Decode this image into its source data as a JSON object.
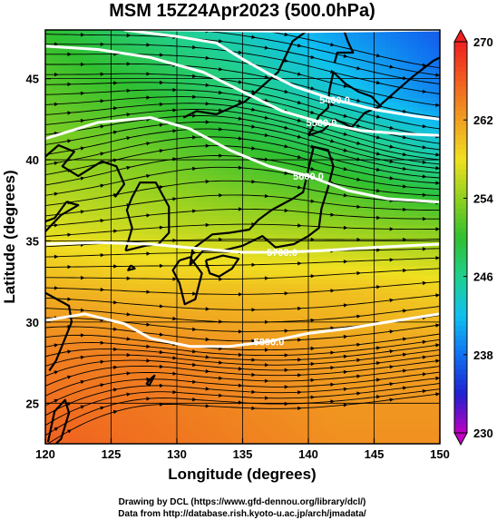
{
  "chart_data": {
    "type": "heatmap",
    "title": "MSM 15Z24Apr2023 (500.0hPa)",
    "xlabel": "Longitude (degrees)",
    "ylabel": "Latitude  (degrees)",
    "xlim": [
      120,
      150
    ],
    "ylim": [
      22.5,
      48
    ],
    "x_ticks": [
      "120",
      "125",
      "130",
      "135",
      "140",
      "145",
      "150"
    ],
    "y_ticks": [
      "25",
      "30",
      "35",
      "40",
      "45"
    ],
    "colorbar": {
      "range": [
        230,
        270
      ],
      "ticks": [
        "230",
        "238",
        "246",
        "254",
        "262",
        "270"
      ],
      "colors": [
        "#c000c0",
        "#2020d0",
        "#1070f0",
        "#10c0f0",
        "#20d090",
        "#30c030",
        "#90d020",
        "#f0e020",
        "#f0a020",
        "#f06020",
        "#f02020"
      ]
    },
    "temperature_grid": {
      "lon": [
        120,
        127.5,
        135,
        142.5,
        150
      ],
      "lat": [
        48,
        44,
        40,
        36,
        32,
        28,
        22.5
      ],
      "values": [
        [
          250,
          247,
          244,
          240,
          237
        ],
        [
          252,
          250,
          247,
          243,
          239
        ],
        [
          254,
          253,
          251,
          249,
          245
        ],
        [
          257,
          256,
          255,
          254,
          253
        ],
        [
          261,
          260,
          260,
          260,
          259
        ],
        [
          264,
          264,
          263,
          262,
          262
        ],
        [
          266,
          265,
          264,
          263,
          263
        ]
      ]
    },
    "contours": [
      {
        "label": "5400.0",
        "points": [
          [
            126,
            48
          ],
          [
            130,
            47.6
          ],
          [
            133,
            47.2
          ],
          [
            135,
            46.2
          ],
          [
            137,
            45.3
          ],
          [
            139,
            44.5
          ],
          [
            142,
            43.7
          ],
          [
            145,
            43.1
          ],
          [
            148,
            42.7
          ],
          [
            150,
            42.5
          ]
        ]
      },
      {
        "label": "5500.0",
        "points": [
          [
            120,
            47
          ],
          [
            124,
            46.8
          ],
          [
            128,
            46.3
          ],
          [
            132,
            45.4
          ],
          [
            135,
            44.2
          ],
          [
            138,
            43.0
          ],
          [
            141,
            42.3
          ],
          [
            144,
            41.8
          ],
          [
            147,
            41.6
          ],
          [
            150,
            41.5
          ]
        ]
      },
      {
        "label": "5600.0",
        "points": [
          [
            120,
            41.3
          ],
          [
            124,
            42.3
          ],
          [
            128,
            42.6
          ],
          [
            131,
            41.9
          ],
          [
            134,
            40.6
          ],
          [
            137,
            39.6
          ],
          [
            140,
            39.0
          ],
          [
            143,
            38.1
          ],
          [
            146,
            37.6
          ],
          [
            150,
            37.4
          ]
        ]
      },
      {
        "label": "5700.0",
        "points": [
          [
            120,
            34.8
          ],
          [
            124,
            34.9
          ],
          [
            128,
            34.8
          ],
          [
            132,
            34.5
          ],
          [
            135,
            34.3
          ],
          [
            138,
            34.3
          ],
          [
            141,
            34.4
          ],
          [
            145,
            34.6
          ],
          [
            150,
            34.8
          ]
        ]
      },
      {
        "label": "5800.0",
        "points": [
          [
            120,
            30.1
          ],
          [
            123,
            30.5
          ],
          [
            126,
            29.9
          ],
          [
            128,
            29.0
          ],
          [
            131,
            28.5
          ],
          [
            134,
            28.5
          ],
          [
            137,
            28.8
          ],
          [
            140,
            29.3
          ],
          [
            143,
            29.6
          ],
          [
            146,
            30.0
          ],
          [
            150,
            30.5
          ]
        ]
      },
      {
        "label": "",
        "points": [
          [
            120,
            48.1
          ],
          [
            130,
            48.0
          ],
          [
            140,
            47.9
          ],
          [
            150,
            48.0
          ]
        ]
      }
    ],
    "coastlines": [
      [
        [
          131,
          33.5
        ],
        [
          132,
          34.4
        ],
        [
          133.5,
          34.4
        ],
        [
          135,
          34.7
        ],
        [
          136.5,
          35.3
        ],
        [
          137.5,
          34.6
        ],
        [
          138.9,
          34.8
        ],
        [
          140,
          35.3
        ],
        [
          140.8,
          35.8
        ],
        [
          141,
          37.0
        ],
        [
          141.5,
          38.3
        ],
        [
          141.9,
          39.6
        ],
        [
          141.5,
          40.6
        ],
        [
          140.4,
          40.8
        ],
        [
          140,
          39.4
        ],
        [
          139.6,
          38.0
        ],
        [
          138.8,
          37.6
        ],
        [
          137.2,
          36.9
        ],
        [
          136.2,
          36.3
        ],
        [
          135.5,
          35.7
        ],
        [
          134,
          35.5
        ],
        [
          132.7,
          35.4
        ],
        [
          131.2,
          34.5
        ],
        [
          131,
          33.5
        ]
      ],
      [
        [
          130.2,
          33.8
        ],
        [
          131,
          34
        ],
        [
          131.9,
          33.0
        ],
        [
          131.4,
          31.4
        ],
        [
          130.6,
          31.1
        ],
        [
          130.2,
          32.4
        ],
        [
          129.7,
          33.2
        ],
        [
          130.2,
          33.8
        ]
      ],
      [
        [
          132.2,
          33.8
        ],
        [
          133.5,
          34.1
        ],
        [
          134.7,
          33.9
        ],
        [
          134.2,
          33.3
        ],
        [
          133.2,
          32.8
        ],
        [
          132.5,
          33.0
        ],
        [
          132.2,
          33.8
        ]
      ],
      [
        [
          140,
          41.5
        ],
        [
          140.8,
          42.7
        ],
        [
          141.5,
          43.2
        ],
        [
          141.6,
          44.3
        ],
        [
          141.9,
          45.4
        ],
        [
          142.8,
          44.7
        ],
        [
          143.8,
          44.2
        ],
        [
          144.8,
          43.9
        ],
        [
          145.5,
          43.3
        ],
        [
          144.3,
          42.9
        ],
        [
          143.3,
          42.0
        ],
        [
          142,
          42.5
        ],
        [
          141.1,
          41.8
        ],
        [
          140,
          41.5
        ]
      ],
      [
        [
          126.1,
          34.4
        ],
        [
          126.6,
          35.8
        ],
        [
          126.2,
          36.9
        ],
        [
          126.6,
          37.7
        ],
        [
          127.2,
          38.6
        ],
        [
          128.4,
          38.6
        ],
        [
          129.4,
          37.1
        ],
        [
          129.4,
          35.5
        ],
        [
          128.6,
          34.8
        ],
        [
          127.6,
          34.7
        ],
        [
          126.1,
          34.4
        ]
      ],
      [
        [
          120,
          40.2
        ],
        [
          121,
          40.9
        ],
        [
          122.2,
          40.5
        ],
        [
          121.3,
          39.6
        ],
        [
          122.5,
          39.0
        ],
        [
          124.3,
          39.9
        ],
        [
          125.4,
          39.6
        ],
        [
          126,
          38.5
        ],
        [
          125.3,
          37.7
        ]
      ],
      [
        [
          120,
          36.2
        ],
        [
          120.7,
          36.4
        ],
        [
          121.6,
          37.4
        ],
        [
          122.5,
          37.2
        ],
        [
          121.2,
          36.6
        ],
        [
          119.9,
          35.5
        ]
      ],
      [
        [
          126.5,
          33.5
        ],
        [
          126.8,
          33.3
        ],
        [
          126.3,
          33.2
        ],
        [
          126.5,
          33.5
        ]
      ],
      [
        [
          128,
          26.5
        ],
        [
          128.3,
          26.7
        ],
        [
          127.9,
          26.1
        ],
        [
          127.7,
          26.2
        ],
        [
          128,
          26.5
        ]
      ],
      [
        [
          120,
          31.8
        ],
        [
          121.8,
          31.0
        ],
        [
          122,
          30.0
        ],
        [
          121.5,
          29.0
        ],
        [
          120.8,
          27.6
        ],
        [
          120.3,
          27.0
        ]
      ],
      [
        [
          120.2,
          22.6
        ],
        [
          120.7,
          24.5
        ],
        [
          121.5,
          25.2
        ],
        [
          121.8,
          24.4
        ],
        [
          121.2,
          22.8
        ],
        [
          120.8,
          22.5
        ]
      ],
      [
        [
          130.5,
          42.6
        ],
        [
          131.5,
          43.0
        ],
        [
          133,
          42.8
        ],
        [
          135.2,
          43.6
        ],
        [
          137.7,
          45.4
        ],
        [
          138.8,
          47.3
        ],
        [
          140,
          48
        ]
      ],
      [
        [
          142,
          46.0
        ],
        [
          142.2,
          46.6
        ],
        [
          143.4,
          46.6
        ],
        [
          143,
          47.3
        ],
        [
          142.7,
          48
        ]
      ],
      [
        [
          145.5,
          43.4
        ],
        [
          146.9,
          44.4
        ],
        [
          147.9,
          45.1
        ],
        [
          149.5,
          46.1
        ],
        [
          150,
          46.3
        ]
      ]
    ],
    "wind_field": {
      "description_free": true,
      "rows": [
        {
          "lat": 47,
          "dir": [
            0.0,
            0.0,
            -0.05,
            -0.12,
            -0.18,
            -0.2,
            -0.15
          ]
        },
        {
          "lat": 45,
          "dir": [
            0.0,
            0.02,
            -0.05,
            -0.15,
            -0.22,
            -0.18,
            -0.1
          ]
        },
        {
          "lat": 43,
          "dir": [
            0.05,
            0.1,
            0.05,
            -0.15,
            -0.25,
            -0.2,
            -0.1
          ]
        },
        {
          "lat": 41,
          "dir": [
            0.12,
            0.2,
            0.1,
            -0.1,
            -0.25,
            -0.22,
            -0.1
          ]
        },
        {
          "lat": 39,
          "dir": [
            0.15,
            0.2,
            0.12,
            -0.05,
            -0.2,
            -0.15,
            -0.05
          ]
        },
        {
          "lat": 37,
          "dir": [
            0.1,
            0.12,
            0.08,
            0.0,
            -0.1,
            -0.05,
            0.0
          ]
        },
        {
          "lat": 35,
          "dir": [
            0.05,
            0.05,
            0.02,
            0.0,
            0.0,
            0.0,
            0.02
          ]
        },
        {
          "lat": 33,
          "dir": [
            0.0,
            0.0,
            0.0,
            0.02,
            0.05,
            0.05,
            0.05
          ]
        },
        {
          "lat": 31,
          "dir": [
            -0.05,
            -0.08,
            -0.05,
            0.0,
            0.05,
            0.1,
            0.1
          ]
        },
        {
          "lat": 29,
          "dir": [
            0.1,
            -0.1,
            -0.1,
            0.0,
            0.05,
            0.1,
            0.12
          ]
        },
        {
          "lat": 27,
          "dir": [
            0.3,
            0.1,
            -0.1,
            -0.05,
            0.05,
            0.1,
            0.1
          ]
        },
        {
          "lat": 25,
          "dir": [
            0.4,
            0.2,
            -0.05,
            -0.05,
            0.05,
            0.1,
            0.1
          ]
        },
        {
          "lat": 23.5,
          "dir": [
            0.5,
            0.3,
            0.05,
            0.0,
            0.05,
            0.1,
            0.1
          ]
        }
      ]
    }
  },
  "credits": {
    "line1": "Drawing by DCL (https://www.gfd-dennou.org/library/dcl/)",
    "line2": "Data from http://database.rish.kyoto-u.ac.jp/arch/jmadata/"
  }
}
